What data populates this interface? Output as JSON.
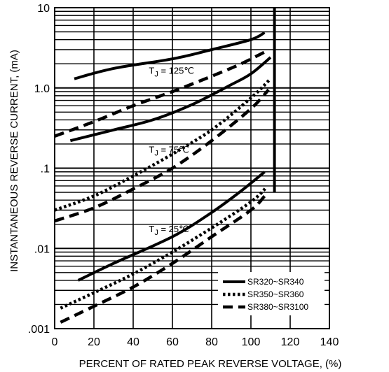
{
  "chart_data": {
    "type": "line",
    "title": "",
    "xlabel": "PERCENT OF RATED PEAK REVERSE VOLTAGE, (%)",
    "ylabel": "INSTANTANEOUS REVERSE CURRENT, (mA)",
    "xlim": [
      0,
      140
    ],
    "ylim": [
      0.001,
      10
    ],
    "yscale": "log",
    "grid": true,
    "x_ticks": [
      "0",
      "20",
      "40",
      "60",
      "80",
      "100",
      "120",
      "140"
    ],
    "y_ticks": [
      {
        "value": 0.001,
        "label": ".001"
      },
      {
        "value": 0.01,
        "label": ".01"
      },
      {
        "value": 0.1,
        "label": ".1"
      },
      {
        "value": 1,
        "label": "1.0"
      },
      {
        "value": 10,
        "label": "10"
      }
    ],
    "legend_position": "bottom-right",
    "legend": [
      {
        "name": "SR320~SR340",
        "style": "solid"
      },
      {
        "name": "SR350~SR360",
        "style": "dotted"
      },
      {
        "name": "SR380~SR3100",
        "style": "dashed"
      }
    ],
    "annotations": [
      {
        "text": "TJ = 125℃",
        "prefix": "T",
        "sub": "J",
        "rest": " = 125℃",
        "x": 48,
        "y": 1.5
      },
      {
        "text": "TJ = 75℃",
        "prefix": "T",
        "sub": "J",
        "rest": " = 75℃",
        "x": 48,
        "y": 0.155
      },
      {
        "text": "TJ = 25℃",
        "prefix": "T",
        "sub": "J",
        "rest": " = 25℃",
        "x": 48,
        "y": 0.016
      }
    ],
    "series": [
      {
        "group": "TJ = 125℃",
        "style": "solid",
        "points": [
          [
            10,
            1.3
          ],
          [
            30,
            1.75
          ],
          [
            60,
            2.3
          ],
          [
            80,
            3.0
          ],
          [
            100,
            4.0
          ],
          [
            107,
            4.9
          ]
        ]
      },
      {
        "group": "TJ = 125℃",
        "style": "dashed",
        "points": [
          [
            0,
            0.25
          ],
          [
            20,
            0.38
          ],
          [
            40,
            0.6
          ],
          [
            60,
            0.9
          ],
          [
            80,
            1.4
          ],
          [
            95,
            2.0
          ],
          [
            107,
            2.8
          ]
        ]
      },
      {
        "group": "TJ = 75℃",
        "style": "solid",
        "points": [
          [
            8,
            0.22
          ],
          [
            30,
            0.3
          ],
          [
            50,
            0.4
          ],
          [
            70,
            0.62
          ],
          [
            90,
            1.1
          ],
          [
            100,
            1.5
          ],
          [
            110,
            2.4
          ]
        ]
      },
      {
        "group": "TJ = 75℃",
        "style": "dotted",
        "points": [
          [
            0,
            0.03
          ],
          [
            20,
            0.045
          ],
          [
            40,
            0.08
          ],
          [
            60,
            0.15
          ],
          [
            80,
            0.3
          ],
          [
            100,
            0.75
          ],
          [
            110,
            1.3
          ]
        ]
      },
      {
        "group": "TJ = 75℃",
        "style": "dashed",
        "points": [
          [
            0,
            0.022
          ],
          [
            20,
            0.032
          ],
          [
            40,
            0.055
          ],
          [
            60,
            0.1
          ],
          [
            80,
            0.22
          ],
          [
            100,
            0.55
          ],
          [
            109,
            0.95
          ]
        ]
      },
      {
        "group": "TJ = 25℃",
        "style": "solid",
        "points": [
          [
            12,
            0.004
          ],
          [
            30,
            0.0065
          ],
          [
            60,
            0.014
          ],
          [
            80,
            0.028
          ],
          [
            95,
            0.052
          ],
          [
            107,
            0.09
          ]
        ]
      },
      {
        "group": "TJ = 25℃",
        "style": "dotted",
        "points": [
          [
            3,
            0.0018
          ],
          [
            20,
            0.0028
          ],
          [
            40,
            0.0048
          ],
          [
            60,
            0.009
          ],
          [
            80,
            0.018
          ],
          [
            100,
            0.038
          ],
          [
            108,
            0.058
          ]
        ]
      },
      {
        "group": "TJ = 25℃",
        "style": "dashed",
        "points": [
          [
            3,
            0.0012
          ],
          [
            20,
            0.0019
          ],
          [
            40,
            0.0033
          ],
          [
            60,
            0.0065
          ],
          [
            80,
            0.014
          ],
          [
            100,
            0.03
          ],
          [
            107,
            0.045
          ]
        ]
      }
    ],
    "breakdown_line": {
      "x": 112,
      "y_from": 0.05,
      "y_to": 10
    }
  }
}
